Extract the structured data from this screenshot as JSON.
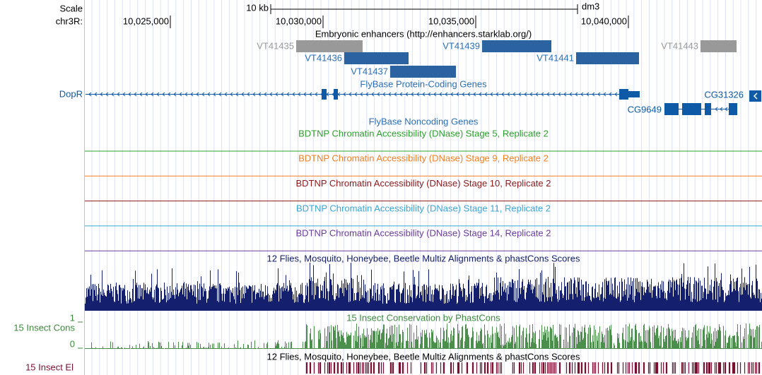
{
  "ruler": {
    "scale_label": "Scale",
    "chrom_label": "chr3R:",
    "scale_bar": "10 kb",
    "assembly": "dm3",
    "ticks": [
      "10,025,000",
      "10,030,000",
      "10,035,000",
      "10,040,000"
    ]
  },
  "enhancers": {
    "title": "Embryonic enhancers (http://enhancers.starklab.org/)",
    "features": [
      "VT41435",
      "VT41436",
      "VT41437",
      "VT41439",
      "VT41441",
      "VT41443"
    ]
  },
  "genes": {
    "title": "FlyBase Protein-Coding Genes",
    "features": [
      "DopR",
      "CG31326",
      "CG9649"
    ]
  },
  "noncoding": {
    "title": "FlyBase Noncoding Genes"
  },
  "dnase": [
    "BDTNP Chromatin Accessibility (DNase) Stage 5, Replicate 2",
    "BDTNP Chromatin Accessibility (DNase) Stage 9, Replicate 2",
    "BDTNP Chromatin Accessibility (DNase) Stage 10, Replicate 2",
    "BDTNP Chromatin Accessibility (DNase) Stage 11, Replicate 2",
    "BDTNP Chromatin Accessibility (DNase) Stage 14, Replicate 2"
  ],
  "multiz": {
    "title": "12 Flies, Mosquito, Honeybee, Beetle Multiz Alignments & phastCons Scores"
  },
  "phastcons": {
    "title": "15 Insect Conservation by PhastCons",
    "short_label": "15 Insect Cons",
    "max": "1",
    "min": "0"
  },
  "elements": {
    "title": "12 Flies, Mosquito, Honeybee, Beetle Multiz Alignments & phastCons Scores",
    "short_label": "15 Insect El"
  }
}
